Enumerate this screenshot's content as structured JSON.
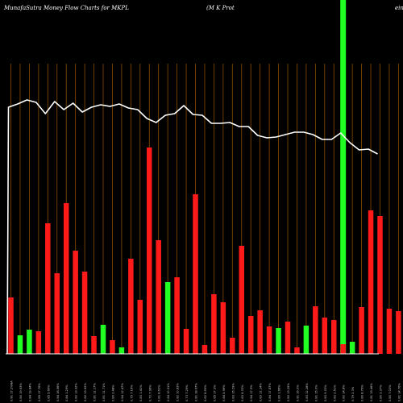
{
  "header": {
    "left": "MunafaSutra  Money Flow  Charts for MKPL",
    "middle": "(M K Prot",
    "right": "ein"
  },
  "colors": {
    "background": "#000000",
    "grid": "#8a4d00",
    "up": "#22ff22",
    "down": "#ff1a1a",
    "line": "#ffffff",
    "highlight": "#22ff22",
    "label": "#cccccc"
  },
  "chart_data": {
    "type": "bar",
    "x": [
      "0.81 17.2%NA",
      "0.80 19.63%",
      "0.84 19.84%",
      "0.85 17.76%",
      "0.85 5.69%",
      "0.84 16.56%",
      "0.84 1.29%",
      "0.82 13.92%",
      "0.82 13.62%",
      "0.81 12.17%",
      "0.81 11.71%",
      "0.80 2.48%",
      "0.84 12.47%",
      "0.75 7.16%",
      "0.83 1.41%",
      "0.72 7.96%",
      "0.81 8.62%",
      "0.84 10.51%",
      "0.82 10.83%",
      "0.73 7.29%",
      "0.81 18.67%",
      "0.82 8.55%",
      "0.85 17.3%",
      "0.84 5.96%",
      "0.83 15.29%",
      "0.83 6.33%",
      "0.84 17.9%",
      "0.83 11.14%",
      "0.84 17.87%",
      "0.80 1.66%",
      "0.80 13.29%",
      "0.81 16.0%",
      "0.83 12.28%",
      "0.81 15.0%",
      "0.83 9.03%",
      "0.82 2.51%",
      "0.82 14.8%",
      "0.79 2.3%",
      "0.80 8.79%",
      "0.81 19.46%",
      "0.80 3.37%",
      "0.80 7.02%",
      "0.81 14.76%",
      "0.83 6.24%",
      "0.80 1.74%",
      "0.80 19.08%"
    ],
    "bar_values": [
      70,
      23,
      30,
      28,
      162,
      100,
      187,
      128,
      102,
      22,
      36,
      17,
      8,
      118,
      67,
      256,
      141,
      89,
      95,
      31,
      198,
      11,
      74,
      64,
      20,
      134,
      47,
      54,
      34,
      32,
      40,
      8,
      35,
      59,
      45,
      42,
      12,
      15,
      58,
      178,
      171,
      56,
      53,
      0,
      0,
      0
    ],
    "bar_colors": [
      "down",
      "up",
      "up",
      "down",
      "down",
      "down",
      "down",
      "down",
      "down",
      "down",
      "up",
      "down",
      "up",
      "down",
      "down",
      "down",
      "down",
      "up",
      "down",
      "down",
      "down",
      "down",
      "down",
      "down",
      "down",
      "down",
      "down",
      "down",
      "down",
      "up",
      "down",
      "down",
      "up",
      "down",
      "down",
      "down",
      "down",
      "up",
      "down",
      "down",
      "down",
      "down",
      "down",
      "down",
      "down",
      "down"
    ],
    "line_values": [
      306,
      310,
      315,
      312,
      298,
      313,
      303,
      311,
      300,
      306,
      309,
      307,
      310,
      305,
      303,
      292,
      287,
      296,
      298,
      308,
      297,
      296,
      286,
      286,
      287,
      282,
      282,
      271,
      268,
      269,
      272,
      275,
      275,
      272,
      266,
      266,
      274,
      262,
      253,
      254,
      248,
      0,
      0,
      0,
      0,
      0
    ],
    "highlight_index": 36,
    "ylim": [
      0,
      360
    ]
  }
}
